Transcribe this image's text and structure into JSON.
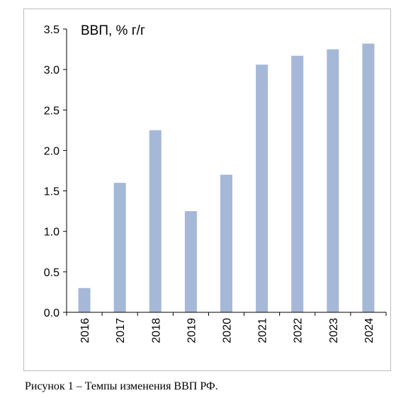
{
  "chart_data": {
    "type": "bar",
    "title": "ВВП, % г/г",
    "xlabel": "",
    "ylabel": "",
    "categories": [
      "2016",
      "2017",
      "2018",
      "2019",
      "2020",
      "2021",
      "2022",
      "2023",
      "2024"
    ],
    "values": [
      0.3,
      1.6,
      2.25,
      1.25,
      1.7,
      3.06,
      3.17,
      3.25,
      3.32
    ],
    "ylim": [
      0,
      3.5
    ],
    "yticks": [
      "0.0",
      "0.5",
      "1.0",
      "1.5",
      "2.0",
      "2.5",
      "3.0",
      "3.5"
    ],
    "grid": false,
    "legend": "none",
    "bar_color": "#a5b8d8",
    "axis_color": "#000000"
  },
  "caption": "Рисунок 1 – Темпы изменения ВВП РФ."
}
